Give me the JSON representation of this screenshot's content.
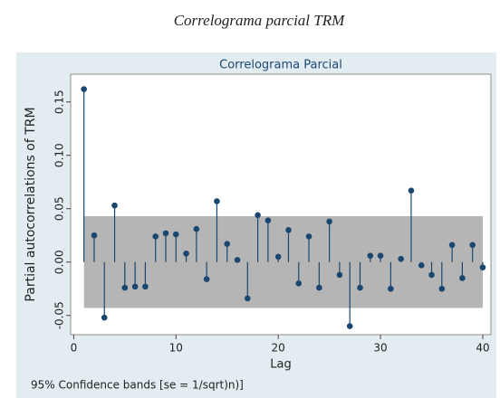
{
  "caption": "Correlograma parcial TRM",
  "chart_data": {
    "type": "stem",
    "title": "Correlograma Parcial",
    "x_label": "Lag",
    "y_label": "Partial autocorrelations of TRM",
    "note": "95% Confidence bands [se = 1/sqrt)n)]",
    "x": [
      1,
      2,
      3,
      4,
      5,
      6,
      7,
      8,
      9,
      10,
      11,
      12,
      13,
      14,
      15,
      16,
      17,
      18,
      19,
      20,
      21,
      22,
      23,
      24,
      25,
      26,
      27,
      28,
      29,
      30,
      31,
      32,
      33,
      34,
      35,
      36,
      37,
      38,
      39,
      40
    ],
    "values": [
      0.162,
      0.025,
      -0.052,
      0.053,
      -0.024,
      -0.023,
      -0.023,
      0.024,
      0.027,
      0.026,
      0.008,
      0.031,
      -0.016,
      0.057,
      0.017,
      0.002,
      -0.034,
      0.044,
      0.039,
      0.005,
      0.03,
      -0.02,
      0.024,
      -0.024,
      0.038,
      -0.012,
      -0.06,
      -0.024,
      0.006,
      0.006,
      -0.025,
      0.003,
      0.067,
      -0.003,
      -0.012,
      -0.025,
      0.016,
      -0.015,
      0.016,
      -0.005
    ],
    "color": "#1a476f",
    "confidence_band": [
      -0.043,
      0.043
    ],
    "band_color": "#b5b5b5",
    "xlim": [
      -0.3,
      40.8
    ],
    "ylim": [
      -0.068,
      0.176
    ],
    "xticks": [
      0,
      10,
      20,
      30,
      40
    ],
    "yticks": [
      -0.05,
      {
        "value": 0,
        "label": "0.00"
      },
      0.05,
      {
        "value": 0.1,
        "label": "0.10"
      },
      0.15
    ],
    "grid": false
  }
}
